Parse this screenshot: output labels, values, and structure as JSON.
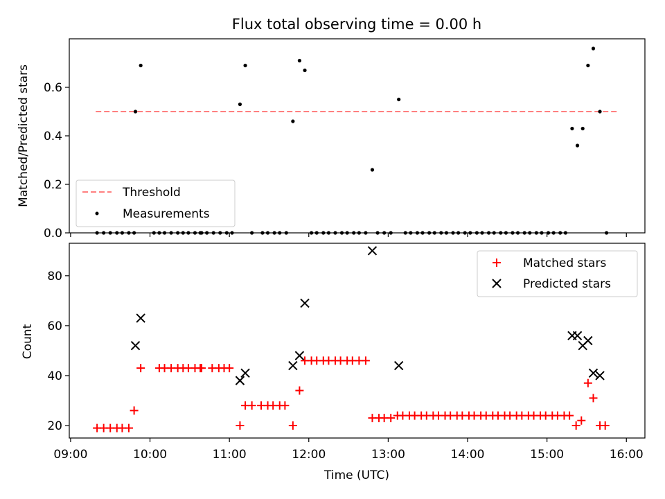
{
  "title": "Flux total observing time = 0.00 h",
  "colors": {
    "threshold": "#ff7f7f",
    "measurements": "#000000",
    "matched": "#ff0000",
    "predicted": "#000000"
  },
  "chart_data": [
    {
      "type": "scatter",
      "ylabel": "Matched/Predicted stars",
      "ylim": [
        0,
        0.8
      ],
      "y_ticks": [
        "0.0",
        "0.2",
        "0.4",
        "0.6"
      ],
      "legend_position": "lower-left",
      "series": [
        {
          "name": "Threshold",
          "style": "dashed-line",
          "points": [
            [
              "09:19",
              0.5
            ],
            [
              "15:53",
              0.5
            ]
          ]
        },
        {
          "name": "Measurements",
          "style": "dots",
          "points": [
            [
              "09:20",
              0
            ],
            [
              "09:25",
              0
            ],
            [
              "09:30",
              0
            ],
            [
              "09:35",
              0
            ],
            [
              "09:39",
              0
            ],
            [
              "09:44",
              0
            ],
            [
              "09:48",
              0
            ],
            [
              "09:49",
              0.5
            ],
            [
              "09:53",
              0.69
            ],
            [
              "10:03",
              0
            ],
            [
              "10:07",
              0
            ],
            [
              "10:11",
              0
            ],
            [
              "10:16",
              0
            ],
            [
              "10:21",
              0
            ],
            [
              "10:25",
              0
            ],
            [
              "10:29",
              0
            ],
            [
              "10:34",
              0
            ],
            [
              "10:38",
              0
            ],
            [
              "10:39",
              0
            ],
            [
              "10:43",
              0
            ],
            [
              "10:48",
              0
            ],
            [
              "10:53",
              0
            ],
            [
              "10:58",
              0
            ],
            [
              "11:02",
              0
            ],
            [
              "11:08",
              0.53
            ],
            [
              "11:12",
              0.69
            ],
            [
              "11:17",
              0
            ],
            [
              "11:25",
              0
            ],
            [
              "11:29",
              0
            ],
            [
              "11:34",
              0
            ],
            [
              "11:38",
              0
            ],
            [
              "11:43",
              0
            ],
            [
              "11:48",
              0.46
            ],
            [
              "11:53",
              0.71
            ],
            [
              "11:57",
              0.67
            ],
            [
              "12:02",
              0
            ],
            [
              "12:06",
              0
            ],
            [
              "12:11",
              0
            ],
            [
              "12:15",
              0
            ],
            [
              "12:20",
              0
            ],
            [
              "12:25",
              0
            ],
            [
              "12:29",
              0
            ],
            [
              "12:34",
              0
            ],
            [
              "12:38",
              0
            ],
            [
              "12:43",
              0
            ],
            [
              "12:48",
              0.26
            ],
            [
              "12:52",
              0
            ],
            [
              "12:57",
              0
            ],
            [
              "13:02",
              0
            ],
            [
              "13:08",
              0.55
            ],
            [
              "13:13",
              0
            ],
            [
              "13:17",
              0
            ],
            [
              "13:22",
              0
            ],
            [
              "13:26",
              0
            ],
            [
              "13:31",
              0
            ],
            [
              "13:35",
              0
            ],
            [
              "13:40",
              0
            ],
            [
              "13:44",
              0
            ],
            [
              "13:49",
              0
            ],
            [
              "13:53",
              0
            ],
            [
              "13:58",
              0
            ],
            [
              "14:02",
              0
            ],
            [
              "14:07",
              0
            ],
            [
              "14:11",
              0
            ],
            [
              "14:16",
              0
            ],
            [
              "14:20",
              0
            ],
            [
              "14:25",
              0
            ],
            [
              "14:29",
              0
            ],
            [
              "14:34",
              0
            ],
            [
              "14:38",
              0
            ],
            [
              "14:43",
              0
            ],
            [
              "14:47",
              0
            ],
            [
              "14:52",
              0
            ],
            [
              "14:56",
              0
            ],
            [
              "15:01",
              0
            ],
            [
              "15:05",
              0
            ],
            [
              "15:10",
              0
            ],
            [
              "15:14",
              0
            ],
            [
              "15:19",
              0.43
            ],
            [
              "15:23",
              0.36
            ],
            [
              "15:27",
              0.43
            ],
            [
              "15:31",
              0.69
            ],
            [
              "15:35",
              0.76
            ],
            [
              "15:40",
              0.5
            ],
            [
              "15:45",
              0
            ]
          ]
        }
      ]
    },
    {
      "type": "scatter",
      "xlabel": "Time (UTC)",
      "ylabel": "Count",
      "ylim": [
        15,
        93
      ],
      "y_ticks": [
        "20",
        "40",
        "60",
        "80"
      ],
      "x_ticks": [
        "09:00",
        "10:00",
        "11:00",
        "12:00",
        "13:00",
        "14:00",
        "15:00",
        "16:00"
      ],
      "legend_position": "upper-right",
      "series": [
        {
          "name": "Matched stars",
          "marker": "plus",
          "points": [
            [
              "09:20",
              19
            ],
            [
              "09:25",
              19
            ],
            [
              "09:30",
              19
            ],
            [
              "09:35",
              19
            ],
            [
              "09:39",
              19
            ],
            [
              "09:44",
              19
            ],
            [
              "09:48",
              26
            ],
            [
              "09:53",
              43
            ],
            [
              "10:07",
              43
            ],
            [
              "10:11",
              43
            ],
            [
              "10:16",
              43
            ],
            [
              "10:21",
              43
            ],
            [
              "10:25",
              43
            ],
            [
              "10:29",
              43
            ],
            [
              "10:34",
              43
            ],
            [
              "10:38",
              43
            ],
            [
              "10:39",
              43
            ],
            [
              "10:47",
              43
            ],
            [
              "10:52",
              43
            ],
            [
              "10:56",
              43
            ],
            [
              "11:00",
              43
            ],
            [
              "11:08",
              20
            ],
            [
              "11:12",
              28
            ],
            [
              "11:17",
              28
            ],
            [
              "11:24",
              28
            ],
            [
              "11:29",
              28
            ],
            [
              "11:33",
              28
            ],
            [
              "11:38",
              28
            ],
            [
              "11:42",
              28
            ],
            [
              "11:48",
              20
            ],
            [
              "11:53",
              34
            ],
            [
              "11:57",
              46
            ],
            [
              "12:02",
              46
            ],
            [
              "12:06",
              46
            ],
            [
              "12:11",
              46
            ],
            [
              "12:15",
              46
            ],
            [
              "12:20",
              46
            ],
            [
              "12:24",
              46
            ],
            [
              "12:29",
              46
            ],
            [
              "12:33",
              46
            ],
            [
              "12:38",
              46
            ],
            [
              "12:43",
              46
            ],
            [
              "12:48",
              23
            ],
            [
              "12:53",
              23
            ],
            [
              "12:57",
              23
            ],
            [
              "13:02",
              23
            ],
            [
              "13:07",
              24
            ],
            [
              "13:11",
              24
            ],
            [
              "13:16",
              24
            ],
            [
              "13:20",
              24
            ],
            [
              "13:25",
              24
            ],
            [
              "13:29",
              24
            ],
            [
              "13:34",
              24
            ],
            [
              "13:38",
              24
            ],
            [
              "13:43",
              24
            ],
            [
              "13:47",
              24
            ],
            [
              "13:52",
              24
            ],
            [
              "13:56",
              24
            ],
            [
              "14:01",
              24
            ],
            [
              "14:05",
              24
            ],
            [
              "14:10",
              24
            ],
            [
              "14:14",
              24
            ],
            [
              "14:19",
              24
            ],
            [
              "14:23",
              24
            ],
            [
              "14:28",
              24
            ],
            [
              "14:32",
              24
            ],
            [
              "14:37",
              24
            ],
            [
              "14:41",
              24
            ],
            [
              "14:46",
              24
            ],
            [
              "14:50",
              24
            ],
            [
              "14:55",
              24
            ],
            [
              "14:59",
              24
            ],
            [
              "15:04",
              24
            ],
            [
              "15:08",
              24
            ],
            [
              "15:13",
              24
            ],
            [
              "15:17",
              24
            ],
            [
              "15:22",
              20
            ],
            [
              "15:26",
              22
            ],
            [
              "15:31",
              37
            ],
            [
              "15:35",
              31
            ],
            [
              "15:40",
              20
            ],
            [
              "15:44",
              20
            ]
          ]
        },
        {
          "name": "Predicted stars",
          "marker": "x",
          "points": [
            [
              "09:49",
              52
            ],
            [
              "09:53",
              63
            ],
            [
              "11:08",
              38
            ],
            [
              "11:12",
              41
            ],
            [
              "11:48",
              44
            ],
            [
              "11:53",
              48
            ],
            [
              "11:57",
              69
            ],
            [
              "12:48",
              90
            ],
            [
              "13:08",
              44
            ],
            [
              "15:19",
              56
            ],
            [
              "15:23",
              56
            ],
            [
              "15:27",
              52
            ],
            [
              "15:31",
              54
            ],
            [
              "15:35",
              41
            ],
            [
              "15:40",
              40
            ]
          ]
        }
      ]
    }
  ]
}
